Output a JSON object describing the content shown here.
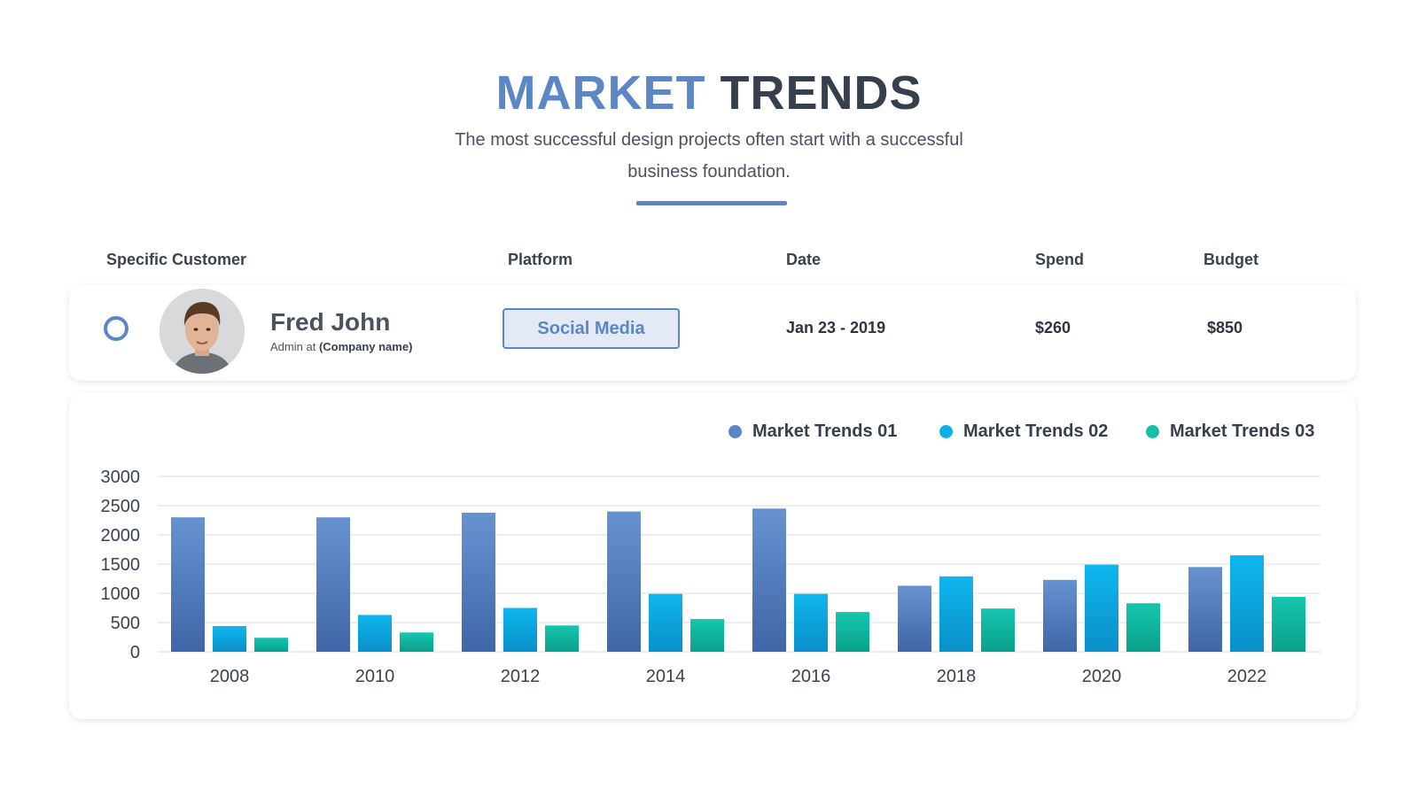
{
  "header": {
    "title_part1": "MARKET",
    "title_part2": "TRENDS",
    "subtitle_line1": "The most successful design projects often start with a successful",
    "subtitle_line2": "business foundation."
  },
  "table": {
    "headers": [
      "Specific Customer",
      "Platform",
      "Date",
      "Spend",
      "Budget"
    ],
    "customer": {
      "name": "Fred John",
      "role_prefix": "Admin at",
      "company": "(Company name)"
    },
    "platform": "Social Media",
    "date": "Jan 23 - 2019",
    "spend": "$260",
    "budget": "$850"
  },
  "colors": {
    "accent": "#5b87c7",
    "series1": "#5b87c7",
    "series2": "#0fb0e8",
    "series3": "#13bfa8"
  },
  "chart_data": {
    "type": "bar",
    "categories": [
      "2008",
      "2010",
      "2012",
      "2014",
      "2016",
      "2018",
      "2020",
      "2022"
    ],
    "series": [
      {
        "name": "Market Trends 01",
        "values": [
          2300,
          2300,
          2380,
          2400,
          2450,
          1130,
          1230,
          1450
        ]
      },
      {
        "name": "Market Trends 02",
        "values": [
          440,
          630,
          750,
          990,
          990,
          1290,
          1490,
          1650
        ]
      },
      {
        "name": "Market Trends 03",
        "values": [
          240,
          330,
          450,
          560,
          680,
          740,
          830,
          940
        ]
      }
    ],
    "yticks": [
      "0",
      "500",
      "1000",
      "1500",
      "2000",
      "2500",
      "3000"
    ],
    "ylim": [
      0,
      3000
    ],
    "grid": true,
    "legend_position": "top-right"
  }
}
